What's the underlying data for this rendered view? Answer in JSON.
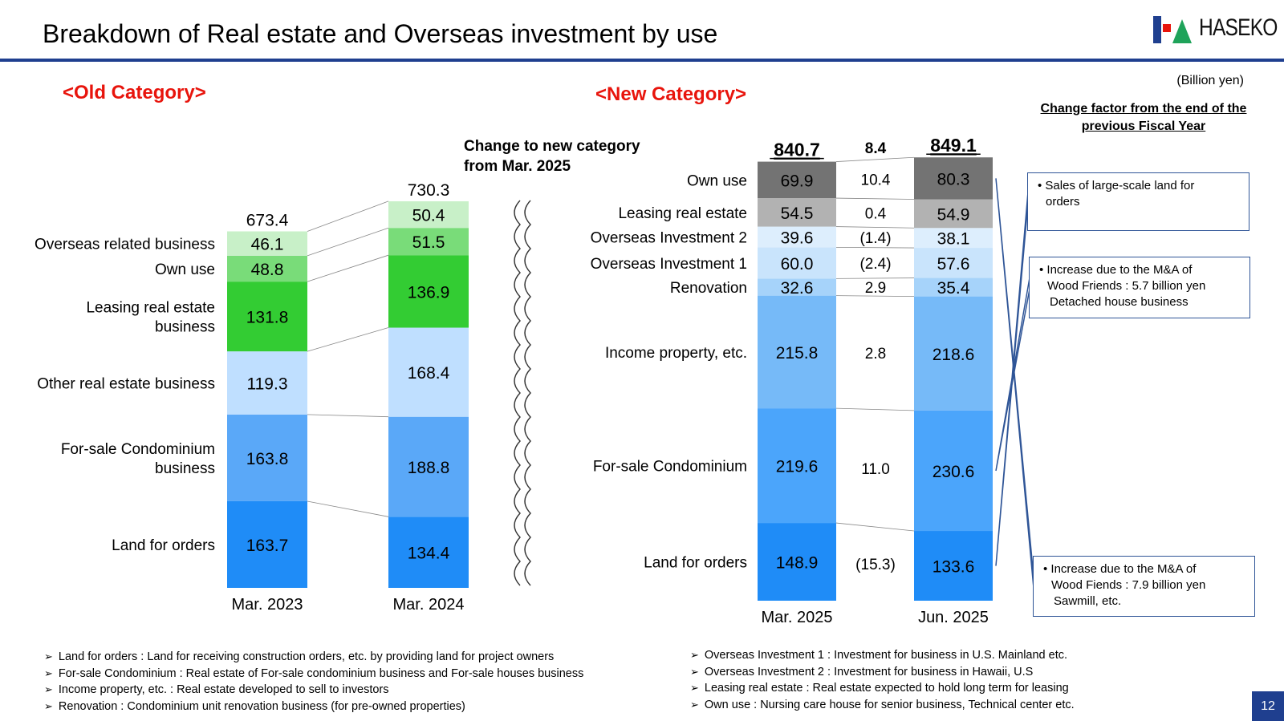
{
  "page": {
    "title": "Breakdown of Real estate and Overseas investment by use",
    "logo_text": "HASEKO",
    "unit": "(Billion yen)",
    "old_category_label": "<Old Category>",
    "new_category_label": "<New Category>",
    "change_note": [
      "Change to new category",
      "from Mar. 2025"
    ],
    "change_factor_title": "Change factor from the end of the previous Fiscal Year",
    "page_number": "12"
  },
  "colors": {
    "title_rule": "#1f3f8f",
    "category_head": "#e8140c",
    "callout_border": "#2f5597"
  },
  "chart_data": [
    {
      "type": "bar",
      "stacked": true,
      "title": "<Old Category>",
      "categories": [
        "Mar. 2023",
        "Mar. 2024"
      ],
      "totals": [
        "673.4",
        "730.3"
      ],
      "series": [
        {
          "name": "Land for orders",
          "color": "#1f8cf7",
          "values": [
            163.7,
            134.4
          ],
          "labels": [
            "163.7",
            "134.4"
          ]
        },
        {
          "name": "For-sale Condominium business",
          "color": "#5aa8f8",
          "values": [
            163.8,
            188.8
          ],
          "labels": [
            "163.8",
            "188.8"
          ]
        },
        {
          "name": "Other real estate business",
          "color": "#bfdfff",
          "values": [
            119.3,
            168.4
          ],
          "labels": [
            "119.3",
            "168.4"
          ]
        },
        {
          "name": "Leasing real estate business",
          "color": "#33cc33",
          "values": [
            131.8,
            136.9
          ],
          "labels": [
            "131.8",
            "136.9"
          ]
        },
        {
          "name": "Own use",
          "color": "#79dc79",
          "values": [
            48.8,
            51.5
          ],
          "labels": [
            "48.8",
            "51.5"
          ]
        },
        {
          "name": "Overseas related business",
          "color": "#c8f0c8",
          "values": [
            46.1,
            50.4
          ],
          "labels": [
            "46.1",
            "50.4"
          ]
        }
      ],
      "legend_lines": [
        [
          "Land for orders"
        ],
        [
          "For-sale Condominium",
          "business"
        ],
        [
          "Other real estate business"
        ],
        [
          "Leasing real estate",
          "business"
        ],
        [
          "Own use"
        ],
        [
          "Overseas related business"
        ]
      ]
    },
    {
      "type": "bar",
      "stacked": true,
      "title": "<New Category>",
      "categories": [
        "Mar. 2025",
        "Jun. 2025"
      ],
      "totals": [
        "840.7",
        "849.1"
      ],
      "total_change": "8.4",
      "series": [
        {
          "name": "Land for orders",
          "color": "#1f8cf7",
          "values": [
            148.9,
            133.6
          ],
          "labels": [
            "148.9",
            "133.6"
          ],
          "change": "(15.3)"
        },
        {
          "name": "For-sale Condominium",
          "color": "#4ba5fb",
          "values": [
            219.6,
            230.6
          ],
          "labels": [
            "219.6",
            "230.6"
          ],
          "change": "11.0"
        },
        {
          "name": "Income property, etc.",
          "color": "#76baf8",
          "values": [
            215.8,
            218.6
          ],
          "labels": [
            "215.8",
            "218.6"
          ],
          "change": "2.8"
        },
        {
          "name": "Renovation",
          "color": "#a6d3fa",
          "values": [
            32.6,
            35.4
          ],
          "labels": [
            "32.6",
            "35.4"
          ],
          "change": "2.9"
        },
        {
          "name": "Overseas Investment 1",
          "color": "#c9e4fc",
          "values": [
            60.0,
            57.6
          ],
          "labels": [
            "60.0",
            "57.6"
          ],
          "change": "(2.4)"
        },
        {
          "name": "Overseas Investment 2",
          "color": "#ddeefd",
          "values": [
            39.6,
            38.1
          ],
          "labels": [
            "39.6",
            "38.1"
          ],
          "change": "(1.4)"
        },
        {
          "name": "Leasing real estate",
          "color": "#b2b2b2",
          "values": [
            54.5,
            54.9
          ],
          "labels": [
            "54.5",
            "54.9"
          ],
          "change": "0.4"
        },
        {
          "name": "Own use",
          "color": "#737373",
          "values": [
            69.9,
            80.3
          ],
          "labels": [
            "69.9",
            "80.3"
          ],
          "change": "10.4"
        }
      ]
    }
  ],
  "callouts": [
    {
      "series": "Land for orders",
      "lines": [
        "• Sales of large-scale land for",
        "orders"
      ]
    },
    {
      "series": "For-sale Condominium",
      "lines": [
        "• Increase due to the M&A of",
        "Wood Friends : 5.7 billion yen",
        "Detached house business"
      ]
    },
    {
      "series": "Own use",
      "lines": [
        "• Increase due to the M&A of",
        "Wood Fiends : 7.9 billion yen",
        "Sawmill, etc."
      ]
    }
  ],
  "footnotes_left": [
    "Land for orders : Land for receiving construction orders, etc. by providing land for project owners",
    "For-sale Condominium : Real estate of For-sale condominium business and For-sale houses business",
    "Income property, etc. : Real estate developed to sell to investors",
    "Renovation : Condominium unit renovation business (for pre-owned properties)"
  ],
  "footnotes_right": [
    "Overseas Investment 1 : Investment for business in U.S. Mainland etc.",
    "Overseas Investment 2 : Investment for business in Hawaii, U.S",
    "Leasing real estate : Real estate expected to hold long term for leasing",
    "Own use : Nursing care house for senior business, Technical center etc."
  ]
}
